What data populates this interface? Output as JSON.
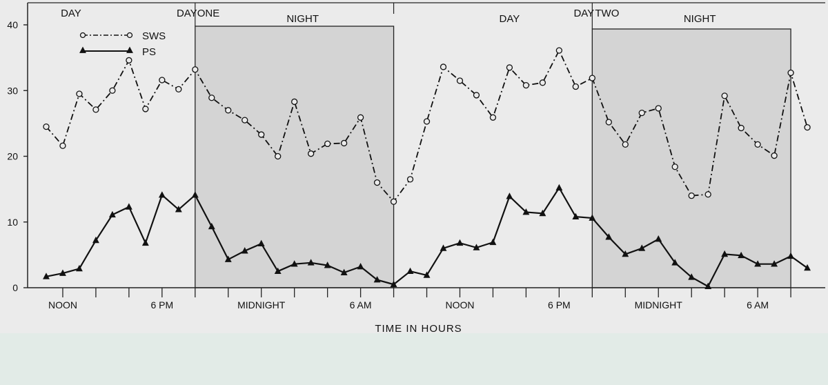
{
  "chart_data": {
    "type": "line",
    "xlabel": "TIME IN HOURS",
    "ylabel": "",
    "ylim": [
      0,
      40
    ],
    "yticks": [
      0,
      10,
      20,
      30,
      40
    ],
    "grid": false,
    "legend_placement": "top-left",
    "x_tick_labels": [
      {
        "hour": 12,
        "label": "NOON"
      },
      {
        "hour": 18,
        "label": "6 PM"
      },
      {
        "hour": 24,
        "label": "MIDNIGHT"
      },
      {
        "hour": 30,
        "label": "6 AM"
      },
      {
        "hour": 36,
        "label": "NOON"
      },
      {
        "hour": 42,
        "label": "6 PM"
      },
      {
        "hour": 48,
        "label": "MIDNIGHT"
      },
      {
        "hour": 54,
        "label": "6 AM"
      }
    ],
    "annotations": [
      {
        "hour": 12.5,
        "label": "DAY",
        "row": "a"
      },
      {
        "hour": 19.5,
        "label": "DAY",
        "row": "a"
      },
      {
        "hour": 20.8,
        "label": "ONE",
        "row": "a"
      },
      {
        "hour": 26.5,
        "label": "NIGHT",
        "row": "b"
      },
      {
        "hour": 39.0,
        "label": "DAY",
        "row": "b"
      },
      {
        "hour": 43.5,
        "label": "DAY",
        "row": "a"
      },
      {
        "hour": 44.9,
        "label": "TWO",
        "row": "a"
      },
      {
        "hour": 50.5,
        "label": "NIGHT",
        "row": "b"
      }
    ],
    "night_periods": [
      [
        20,
        32
      ],
      [
        44,
        56
      ]
    ],
    "series": [
      {
        "name": "SWS",
        "style": "dash-dot",
        "marker": "open-circle",
        "color": "#111111",
        "x": [
          11,
          12,
          13,
          14,
          15,
          16,
          17,
          18,
          19,
          20,
          21,
          22,
          23,
          24,
          25,
          26,
          27,
          28,
          29,
          30,
          31,
          32,
          33,
          34,
          35,
          36,
          37,
          38,
          39,
          40,
          41,
          42,
          43,
          44,
          45,
          46,
          47,
          48,
          49,
          50,
          51,
          52,
          53,
          54,
          55,
          56,
          57
        ],
        "values": [
          24.5,
          21.6,
          29.5,
          27.1,
          30,
          34.6,
          27.2,
          31.6,
          30.2,
          33.2,
          28.9,
          27,
          25.5,
          23.3,
          20,
          28.3,
          20.4,
          21.9,
          22,
          25.9,
          16,
          13.1,
          16.5,
          25.3,
          33.6,
          31.5,
          29.3,
          25.9,
          33.5,
          30.8,
          31.2,
          36.1,
          30.6,
          31.9,
          25.2,
          21.8,
          26.6,
          27.3,
          18.4,
          14,
          14.2,
          29.2,
          24.3,
          21.8,
          20.1,
          32.7,
          24.4
        ]
      },
      {
        "name": "PS",
        "style": "solid",
        "marker": "filled-triangle",
        "color": "#111111",
        "x": [
          11,
          12,
          13,
          14,
          15,
          16,
          17,
          18,
          19,
          20,
          21,
          22,
          23,
          24,
          25,
          26,
          27,
          28,
          29,
          30,
          31,
          32,
          33,
          34,
          35,
          36,
          37,
          38,
          39,
          40,
          41,
          42,
          43,
          44,
          45,
          46,
          47,
          48,
          49,
          50,
          51,
          52,
          53,
          54,
          55,
          56,
          57
        ],
        "values": [
          1.7,
          2.2,
          2.9,
          7.2,
          11.1,
          12.3,
          6.8,
          14.1,
          11.9,
          14.1,
          9.3,
          4.3,
          5.6,
          6.7,
          2.5,
          3.6,
          3.8,
          3.4,
          2.3,
          3.2,
          1.2,
          0.5,
          2.5,
          1.9,
          6,
          6.8,
          6.1,
          6.9,
          13.9,
          11.5,
          11.3,
          15.2,
          10.8,
          10.6,
          7.7,
          5.1,
          6,
          7.4,
          3.8,
          1.6,
          0.2,
          5.1,
          4.9,
          3.6,
          3.6,
          4.8,
          3
        ]
      }
    ]
  }
}
